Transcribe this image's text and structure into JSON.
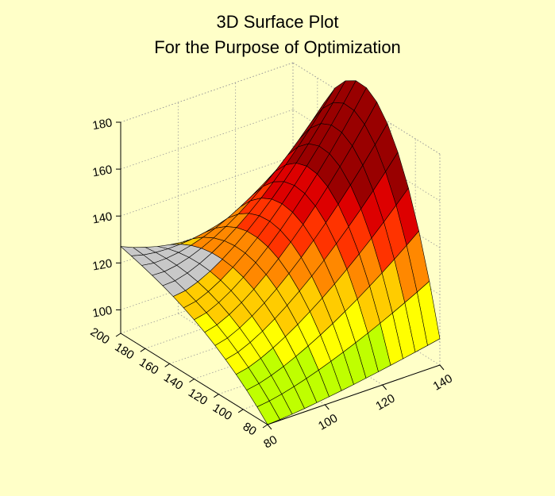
{
  "chart_data": {
    "type": "surface3d",
    "title": "3D Surface Plot",
    "subtitle": "For the Purpose of Optimization",
    "x_axis": {
      "label": "",
      "range": [
        80,
        140
      ],
      "ticks": [
        "80",
        "100",
        "120",
        "140"
      ]
    },
    "y_axis": {
      "label": "",
      "range": [
        80,
        200
      ],
      "ticks": [
        "80",
        "100",
        "120",
        "140",
        "160",
        "180",
        "200"
      ]
    },
    "z_axis": {
      "label": "",
      "range": [
        90,
        180
      ],
      "ticks": [
        "100",
        "120",
        "140",
        "160",
        "180"
      ]
    },
    "grid": true,
    "surface_description": "saddle-shaped surface: rises along one horizontal axis toward a peak of about 168, dips to about 90 near (80, 80); colored by height from yellow-green (low) through orange/red to dark red (high); back-left region shown in gray",
    "color_scale": [
      "#bfff00",
      "#ffff00",
      "#ffcc00",
      "#ff8800",
      "#ff3300",
      "#dd0000",
      "#990000"
    ],
    "surface_color_low_region": "#c8c8c8"
  }
}
